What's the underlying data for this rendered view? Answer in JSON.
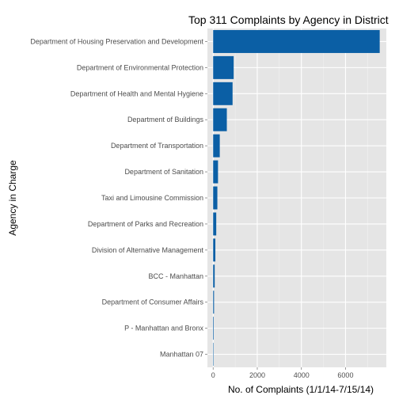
{
  "chart_data": {
    "type": "bar",
    "orientation": "horizontal",
    "title": "Top 311 Complaints by Agency in District",
    "xlabel": "No. of Complaints (1/1/14-7/15/14)",
    "ylabel": "Agency in Charge",
    "categories": [
      "Department of Housing Preservation and Development",
      "Department of Environmental Protection",
      "Department of Health and Mental Hygiene",
      "Department of Buildings",
      "Department of Transportation",
      "Department of Sanitation",
      "Taxi and Limousine Commission",
      "Department of Parks and Recreation",
      "Division of Alternative Management",
      "BCC - Manhattan",
      "Department of Consumer Affairs",
      "P - Manhattan and Bronx",
      "Manhattan 07"
    ],
    "values": [
      7550,
      930,
      880,
      620,
      300,
      220,
      190,
      140,
      100,
      70,
      40,
      25,
      15
    ],
    "xlim": [
      -260,
      7850
    ],
    "x_ticks": [
      0,
      2000,
      4000,
      6000
    ],
    "x_tick_labels": [
      "0",
      "2000",
      "4000",
      "6000"
    ],
    "grid": true,
    "colors": {
      "bar": "#0b5fa5",
      "panel": "#e5e5e5",
      "grid": "#ffffff"
    }
  }
}
